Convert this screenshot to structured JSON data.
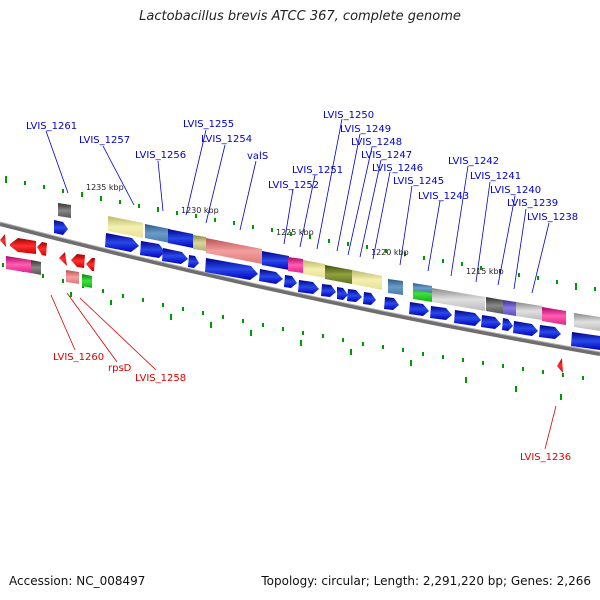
{
  "title": "Lactobacillus brevis ATCC 367, complete genome",
  "footer": {
    "accession": "Accession: NC_008497",
    "topology": "Topology: circular; Length: 2,291,220 bp; Genes: 2,266"
  },
  "kbp_ticks": [
    "1235 kbp",
    "1230 kbp",
    "1225 kbp",
    "1220 kbp",
    "1215 kbp"
  ],
  "top_genes": [
    "LVIS_1261",
    "LVIS_1257",
    "LVIS_1256",
    "LVIS_1255",
    "LVIS_1254",
    "valS",
    "LVIS_1250",
    "LVIS_1249",
    "LVIS_1248",
    "LVIS_1247",
    "LVIS_1252",
    "LVIS_1251",
    "LVIS_1246",
    "LVIS_1245",
    "LVIS_1242",
    "LVIS_1241",
    "LVIS_1243",
    "LVIS_1240",
    "LVIS_1239",
    "LVIS_1238"
  ],
  "bottom_genes": [
    "LVIS_1260",
    "rpsD",
    "LVIS_1258",
    "LVIS_1236"
  ],
  "colors": {
    "forward": "#0000ee",
    "reverse": "#ee0000",
    "backbone": "#888888",
    "tick_green": "#009900",
    "forward_label": "#0000cc",
    "reverse_label": "#dd0000"
  }
}
